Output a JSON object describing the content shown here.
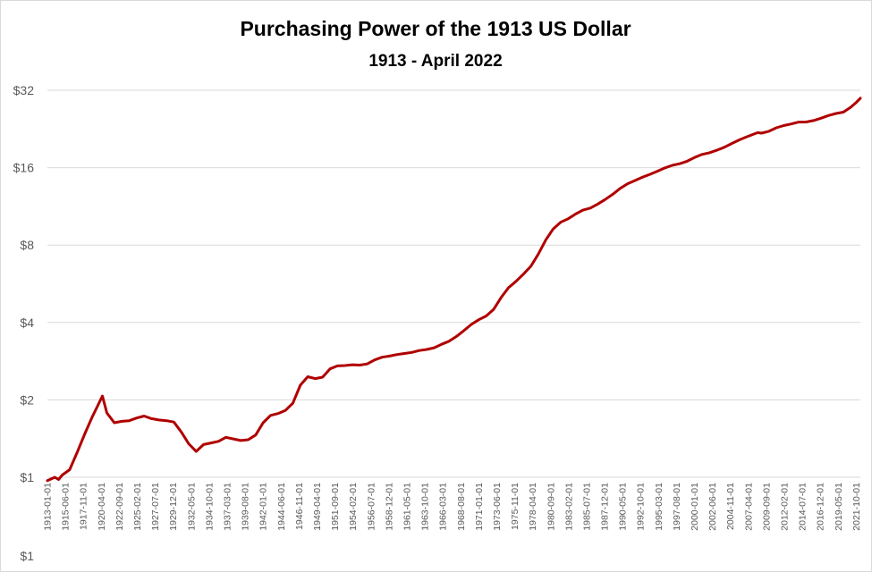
{
  "chart_data": {
    "type": "line",
    "title": "Purchasing Power of the 1913 US Dollar",
    "subtitle": "1913 - April 2022",
    "xlabel": "",
    "ylabel": "",
    "y_scale": "log2",
    "ylim": [
      1,
      32
    ],
    "y_ticks": [
      {
        "value": 32,
        "label": "$32"
      },
      {
        "value": 16,
        "label": "$16"
      },
      {
        "value": 8,
        "label": "$8"
      },
      {
        "value": 4,
        "label": "$4"
      },
      {
        "value": 2,
        "label": "$2"
      },
      {
        "value": 1,
        "label": "$1"
      }
    ],
    "bottom_tick_label": "$1",
    "grid": true,
    "legend": "none",
    "line_color": "#b00000",
    "x_ticks": [
      "1913-01-01",
      "1915-06-01",
      "1917-11-01",
      "1920-04-01",
      "1922-09-01",
      "1925-02-01",
      "1927-07-01",
      "1929-12-01",
      "1932-05-01",
      "1934-10-01",
      "1937-03-01",
      "1939-08-01",
      "1942-01-01",
      "1944-06-01",
      "1946-11-01",
      "1949-04-01",
      "1951-09-01",
      "1954-02-01",
      "1956-07-01",
      "1958-12-01",
      "1961-05-01",
      "1963-10-01",
      "1966-03-01",
      "1968-08-01",
      "1971-01-01",
      "1973-06-01",
      "1975-11-01",
      "1978-04-01",
      "1980-09-01",
      "1983-02-01",
      "1985-07-01",
      "1987-12-01",
      "1990-05-01",
      "1992-10-01",
      "1995-03-01",
      "1997-08-01",
      "2000-01-01",
      "2002-06-01",
      "2004-11-01",
      "2007-04-01",
      "2009-09-01",
      "2012-02-01",
      "2014-07-01",
      "2016-12-01",
      "2019-05-01",
      "2021-10-01"
    ],
    "series": [
      {
        "x": [
          1913.0,
          1914.0,
          1914.5,
          1915.0,
          1916.0,
          1917.0,
          1918.0,
          1919.0,
          1920.4,
          1921.0,
          1922.0,
          1923.0,
          1924.0,
          1925.0,
          1926.0,
          1927.0,
          1928.0,
          1929.0,
          1930.0,
          1931.0,
          1932.0,
          1933.0,
          1934.0,
          1935.0,
          1936.0,
          1937.0,
          1938.0,
          1939.0,
          1940.0,
          1941.0,
          1942.0,
          1943.0,
          1944.0,
          1945.0,
          1946.0,
          1947.0,
          1948.0,
          1949.0,
          1950.0,
          1951.0,
          1952.0,
          1953.0,
          1954.0,
          1955.0,
          1956.0,
          1957.0,
          1958.0,
          1959.0,
          1960.0,
          1961.0,
          1962.0,
          1963.0,
          1964.0,
          1965.0,
          1966.0,
          1967.0,
          1968.0,
          1969.0,
          1970.0,
          1971.0,
          1972.0,
          1973.0,
          1974.0,
          1975.0,
          1976.0,
          1977.0,
          1978.0,
          1979.0,
          1980.0,
          1981.0,
          1982.0,
          1983.0,
          1984.0,
          1985.0,
          1986.0,
          1987.0,
          1988.0,
          1989.0,
          1990.0,
          1991.0,
          1992.0,
          1993.0,
          1994.0,
          1995.0,
          1996.0,
          1997.0,
          1998.0,
          1999.0,
          2000.0,
          2001.0,
          2002.0,
          2003.0,
          2004.0,
          2005.0,
          2006.0,
          2007.0,
          2008.5,
          2009.0,
          2010.0,
          2011.0,
          2012.0,
          2013.0,
          2014.0,
          2015.0,
          2016.0,
          2017.0,
          2018.0,
          2019.0,
          2020.0,
          2021.0,
          2021.8,
          2022.3
        ],
        "y": [
          0.97,
          1.0,
          0.98,
          1.02,
          1.07,
          1.25,
          1.47,
          1.71,
          2.07,
          1.78,
          1.63,
          1.65,
          1.66,
          1.7,
          1.73,
          1.69,
          1.67,
          1.66,
          1.64,
          1.5,
          1.35,
          1.26,
          1.34,
          1.36,
          1.38,
          1.43,
          1.41,
          1.39,
          1.4,
          1.46,
          1.63,
          1.74,
          1.77,
          1.82,
          1.94,
          2.28,
          2.46,
          2.42,
          2.45,
          2.64,
          2.71,
          2.72,
          2.74,
          2.73,
          2.76,
          2.86,
          2.93,
          2.96,
          3.0,
          3.03,
          3.06,
          3.11,
          3.14,
          3.19,
          3.29,
          3.38,
          3.53,
          3.72,
          3.93,
          4.1,
          4.24,
          4.5,
          5.0,
          5.46,
          5.78,
          6.17,
          6.62,
          7.38,
          8.37,
          9.24,
          9.81,
          10.12,
          10.56,
          10.94,
          11.14,
          11.55,
          12.03,
          12.6,
          13.29,
          13.85,
          14.26,
          14.69,
          15.07,
          15.5,
          15.96,
          16.33,
          16.58,
          16.95,
          17.52,
          18.01,
          18.29,
          18.71,
          19.21,
          19.86,
          20.5,
          21.09,
          21.9,
          21.8,
          22.16,
          22.86,
          23.33,
          23.67,
          24.06,
          24.09,
          24.39,
          24.91,
          25.52,
          25.98,
          26.3,
          27.49,
          28.8,
          29.8
        ]
      }
    ]
  }
}
